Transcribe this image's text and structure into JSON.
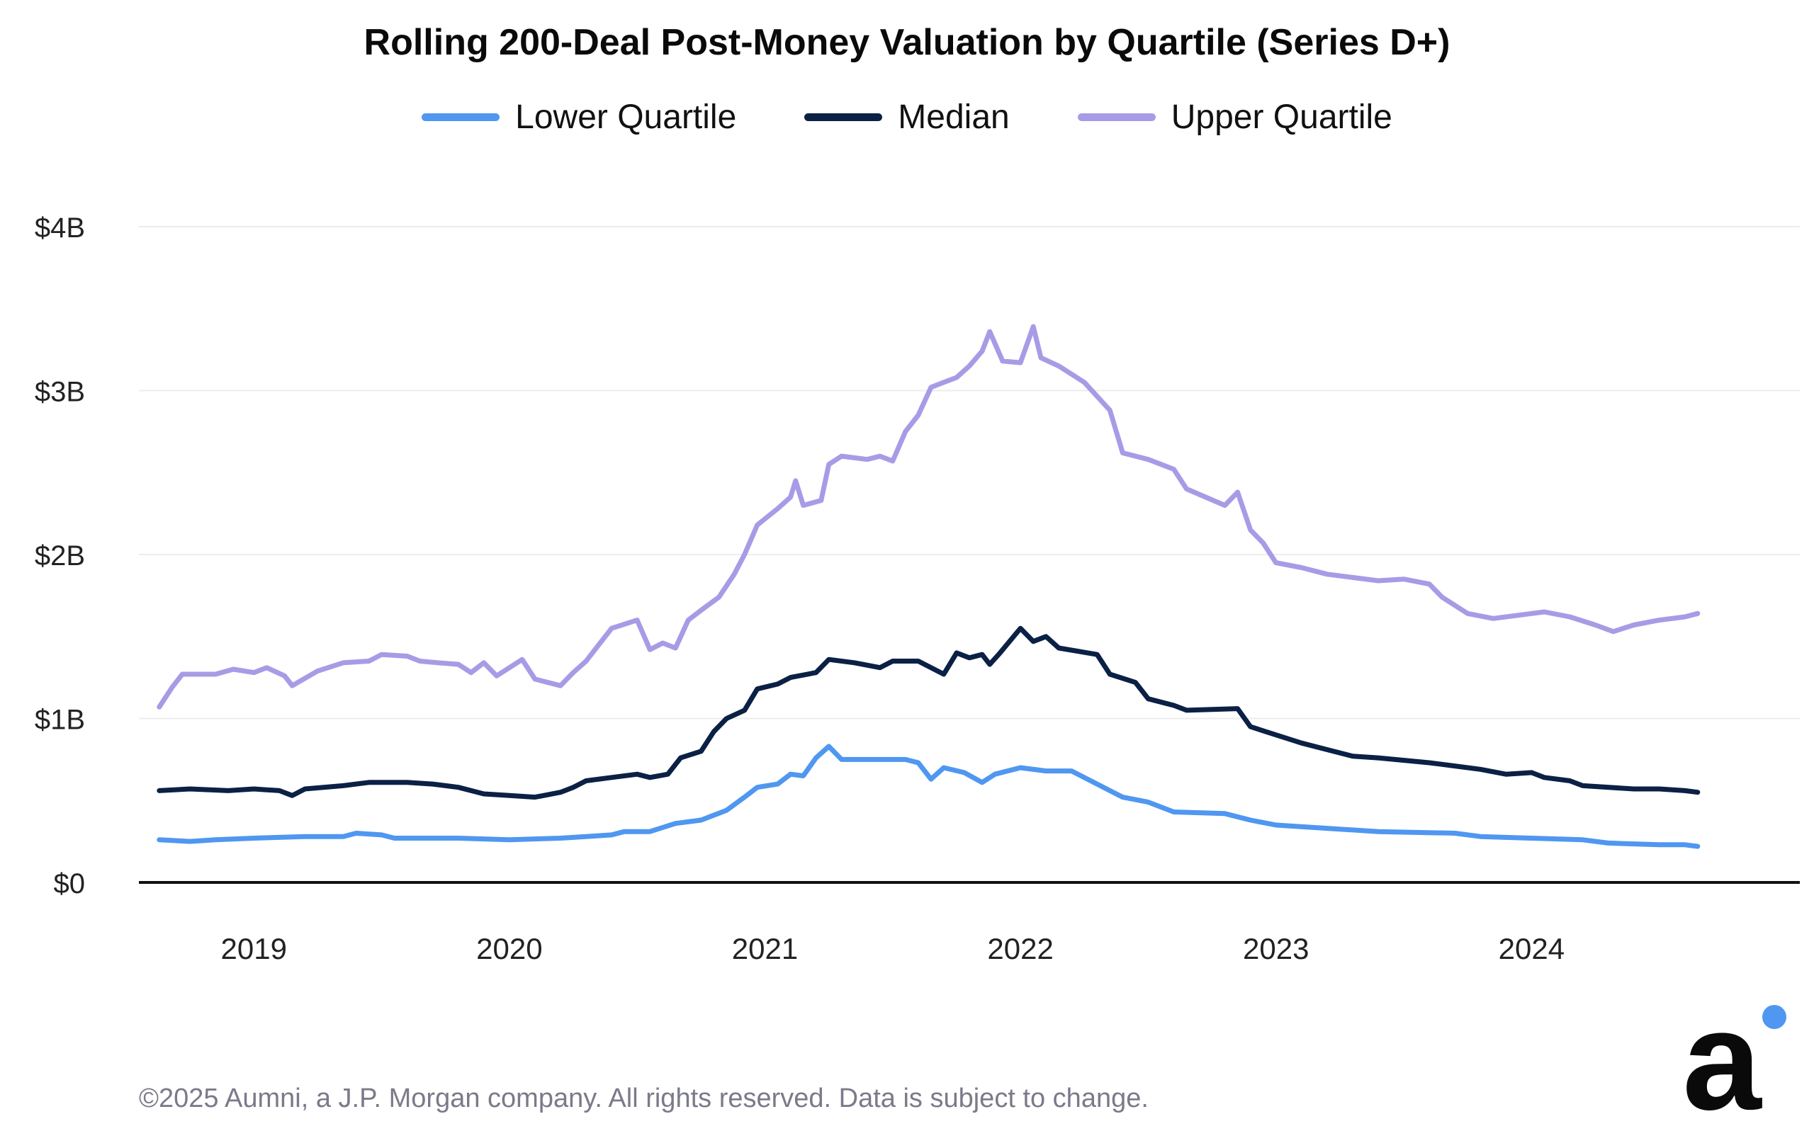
{
  "chart_data": {
    "type": "line",
    "title": "Rolling 200-Deal Post-Money Valuation by Quartile (Series D+)",
    "xlabel": "",
    "ylabel": "",
    "ylim": [
      0,
      4
    ],
    "y_unit": "$B",
    "yticks": [
      0,
      1,
      2,
      3,
      4
    ],
    "ytick_labels": [
      "$0",
      "$1B",
      "$2B",
      "$3B",
      "$4B"
    ],
    "xlim": [
      2018.55,
      2025.05
    ],
    "xticks": [
      2019,
      2020,
      2021,
      2022,
      2023,
      2024
    ],
    "xtick_labels": [
      "2019",
      "2020",
      "2021",
      "2022",
      "2023",
      "2024"
    ],
    "grid": true,
    "legend_position": "top-center",
    "series": [
      {
        "name": "Lower Quartile",
        "color": "#4F97F0",
        "points": [
          [
            2018.63,
            0.26
          ],
          [
            2018.75,
            0.25
          ],
          [
            2018.85,
            0.26
          ],
          [
            2019.0,
            0.27
          ],
          [
            2019.2,
            0.28
          ],
          [
            2019.35,
            0.28
          ],
          [
            2019.4,
            0.3
          ],
          [
            2019.5,
            0.29
          ],
          [
            2019.55,
            0.27
          ],
          [
            2019.8,
            0.27
          ],
          [
            2020.0,
            0.26
          ],
          [
            2020.2,
            0.27
          ],
          [
            2020.3,
            0.28
          ],
          [
            2020.4,
            0.29
          ],
          [
            2020.45,
            0.31
          ],
          [
            2020.55,
            0.31
          ],
          [
            2020.65,
            0.36
          ],
          [
            2020.75,
            0.38
          ],
          [
            2020.85,
            0.44
          ],
          [
            2020.92,
            0.52
          ],
          [
            2020.97,
            0.58
          ],
          [
            2021.05,
            0.6
          ],
          [
            2021.1,
            0.66
          ],
          [
            2021.15,
            0.65
          ],
          [
            2021.2,
            0.76
          ],
          [
            2021.25,
            0.83
          ],
          [
            2021.3,
            0.75
          ],
          [
            2021.4,
            0.75
          ],
          [
            2021.55,
            0.75
          ],
          [
            2021.6,
            0.73
          ],
          [
            2021.65,
            0.63
          ],
          [
            2021.7,
            0.7
          ],
          [
            2021.78,
            0.67
          ],
          [
            2021.85,
            0.61
          ],
          [
            2021.9,
            0.66
          ],
          [
            2022.0,
            0.7
          ],
          [
            2022.1,
            0.68
          ],
          [
            2022.2,
            0.68
          ],
          [
            2022.3,
            0.6
          ],
          [
            2022.4,
            0.52
          ],
          [
            2022.5,
            0.49
          ],
          [
            2022.6,
            0.43
          ],
          [
            2022.8,
            0.42
          ],
          [
            2022.9,
            0.38
          ],
          [
            2023.0,
            0.35
          ],
          [
            2023.2,
            0.33
          ],
          [
            2023.4,
            0.31
          ],
          [
            2023.7,
            0.3
          ],
          [
            2023.8,
            0.28
          ],
          [
            2024.0,
            0.27
          ],
          [
            2024.2,
            0.26
          ],
          [
            2024.3,
            0.24
          ],
          [
            2024.5,
            0.23
          ],
          [
            2024.6,
            0.23
          ],
          [
            2024.65,
            0.22
          ]
        ]
      },
      {
        "name": "Median",
        "color": "#0B2045",
        "points": [
          [
            2018.63,
            0.56
          ],
          [
            2018.75,
            0.57
          ],
          [
            2018.9,
            0.56
          ],
          [
            2019.0,
            0.57
          ],
          [
            2019.1,
            0.56
          ],
          [
            2019.15,
            0.53
          ],
          [
            2019.2,
            0.57
          ],
          [
            2019.35,
            0.59
          ],
          [
            2019.45,
            0.61
          ],
          [
            2019.6,
            0.61
          ],
          [
            2019.7,
            0.6
          ],
          [
            2019.8,
            0.58
          ],
          [
            2019.9,
            0.54
          ],
          [
            2020.0,
            0.53
          ],
          [
            2020.1,
            0.52
          ],
          [
            2020.2,
            0.55
          ],
          [
            2020.25,
            0.58
          ],
          [
            2020.3,
            0.62
          ],
          [
            2020.4,
            0.64
          ],
          [
            2020.5,
            0.66
          ],
          [
            2020.55,
            0.64
          ],
          [
            2020.62,
            0.66
          ],
          [
            2020.67,
            0.76
          ],
          [
            2020.75,
            0.8
          ],
          [
            2020.8,
            0.92
          ],
          [
            2020.85,
            1.0
          ],
          [
            2020.92,
            1.05
          ],
          [
            2020.97,
            1.18
          ],
          [
            2021.05,
            1.21
          ],
          [
            2021.1,
            1.25
          ],
          [
            2021.2,
            1.28
          ],
          [
            2021.25,
            1.36
          ],
          [
            2021.35,
            1.34
          ],
          [
            2021.45,
            1.31
          ],
          [
            2021.5,
            1.35
          ],
          [
            2021.6,
            1.35
          ],
          [
            2021.7,
            1.27
          ],
          [
            2021.75,
            1.4
          ],
          [
            2021.8,
            1.37
          ],
          [
            2021.85,
            1.39
          ],
          [
            2021.88,
            1.33
          ],
          [
            2021.92,
            1.4
          ],
          [
            2022.0,
            1.55
          ],
          [
            2022.05,
            1.47
          ],
          [
            2022.1,
            1.5
          ],
          [
            2022.15,
            1.43
          ],
          [
            2022.3,
            1.39
          ],
          [
            2022.35,
            1.27
          ],
          [
            2022.45,
            1.22
          ],
          [
            2022.5,
            1.12
          ],
          [
            2022.6,
            1.08
          ],
          [
            2022.65,
            1.05
          ],
          [
            2022.85,
            1.06
          ],
          [
            2022.9,
            0.95
          ],
          [
            2023.0,
            0.9
          ],
          [
            2023.1,
            0.85
          ],
          [
            2023.2,
            0.81
          ],
          [
            2023.3,
            0.77
          ],
          [
            2023.4,
            0.76
          ],
          [
            2023.6,
            0.73
          ],
          [
            2023.7,
            0.71
          ],
          [
            2023.8,
            0.69
          ],
          [
            2023.9,
            0.66
          ],
          [
            2024.0,
            0.67
          ],
          [
            2024.05,
            0.64
          ],
          [
            2024.15,
            0.62
          ],
          [
            2024.2,
            0.59
          ],
          [
            2024.4,
            0.57
          ],
          [
            2024.5,
            0.57
          ],
          [
            2024.6,
            0.56
          ],
          [
            2024.65,
            0.55
          ]
        ]
      },
      {
        "name": "Upper Quartile",
        "color": "#A89BE6",
        "points": [
          [
            2018.63,
            1.07
          ],
          [
            2018.68,
            1.19
          ],
          [
            2018.72,
            1.27
          ],
          [
            2018.85,
            1.27
          ],
          [
            2018.92,
            1.3
          ],
          [
            2019.0,
            1.28
          ],
          [
            2019.05,
            1.31
          ],
          [
            2019.12,
            1.26
          ],
          [
            2019.15,
            1.2
          ],
          [
            2019.25,
            1.29
          ],
          [
            2019.35,
            1.34
          ],
          [
            2019.45,
            1.35
          ],
          [
            2019.5,
            1.39
          ],
          [
            2019.6,
            1.38
          ],
          [
            2019.65,
            1.35
          ],
          [
            2019.72,
            1.34
          ],
          [
            2019.8,
            1.33
          ],
          [
            2019.85,
            1.28
          ],
          [
            2019.9,
            1.34
          ],
          [
            2019.95,
            1.26
          ],
          [
            2020.05,
            1.36
          ],
          [
            2020.1,
            1.24
          ],
          [
            2020.2,
            1.2
          ],
          [
            2020.25,
            1.28
          ],
          [
            2020.3,
            1.35
          ],
          [
            2020.35,
            1.45
          ],
          [
            2020.4,
            1.55
          ],
          [
            2020.5,
            1.6
          ],
          [
            2020.55,
            1.42
          ],
          [
            2020.6,
            1.46
          ],
          [
            2020.65,
            1.43
          ],
          [
            2020.7,
            1.6
          ],
          [
            2020.75,
            1.66
          ],
          [
            2020.82,
            1.74
          ],
          [
            2020.88,
            1.88
          ],
          [
            2020.92,
            2.0
          ],
          [
            2020.97,
            2.18
          ],
          [
            2021.05,
            2.28
          ],
          [
            2021.1,
            2.35
          ],
          [
            2021.12,
            2.45
          ],
          [
            2021.15,
            2.3
          ],
          [
            2021.22,
            2.33
          ],
          [
            2021.25,
            2.55
          ],
          [
            2021.3,
            2.6
          ],
          [
            2021.4,
            2.58
          ],
          [
            2021.45,
            2.6
          ],
          [
            2021.5,
            2.57
          ],
          [
            2021.55,
            2.75
          ],
          [
            2021.6,
            2.85
          ],
          [
            2021.65,
            3.02
          ],
          [
            2021.7,
            3.05
          ],
          [
            2021.75,
            3.08
          ],
          [
            2021.8,
            3.15
          ],
          [
            2021.85,
            3.24
          ],
          [
            2021.88,
            3.36
          ],
          [
            2021.93,
            3.18
          ],
          [
            2022.0,
            3.17
          ],
          [
            2022.05,
            3.39
          ],
          [
            2022.08,
            3.2
          ],
          [
            2022.15,
            3.15
          ],
          [
            2022.25,
            3.05
          ],
          [
            2022.35,
            2.88
          ],
          [
            2022.4,
            2.62
          ],
          [
            2022.5,
            2.58
          ],
          [
            2022.6,
            2.52
          ],
          [
            2022.65,
            2.4
          ],
          [
            2022.8,
            2.3
          ],
          [
            2022.85,
            2.38
          ],
          [
            2022.9,
            2.15
          ],
          [
            2022.95,
            2.07
          ],
          [
            2023.0,
            1.95
          ],
          [
            2023.1,
            1.92
          ],
          [
            2023.2,
            1.88
          ],
          [
            2023.3,
            1.86
          ],
          [
            2023.4,
            1.84
          ],
          [
            2023.5,
            1.85
          ],
          [
            2023.6,
            1.82
          ],
          [
            2023.65,
            1.74
          ],
          [
            2023.75,
            1.64
          ],
          [
            2023.85,
            1.61
          ],
          [
            2023.95,
            1.63
          ],
          [
            2024.05,
            1.65
          ],
          [
            2024.15,
            1.62
          ],
          [
            2024.25,
            1.57
          ],
          [
            2024.32,
            1.53
          ],
          [
            2024.4,
            1.57
          ],
          [
            2024.5,
            1.6
          ],
          [
            2024.6,
            1.62
          ],
          [
            2024.65,
            1.64
          ]
        ]
      }
    ]
  },
  "footer": {
    "copyright": "©2025 Aumni, a J.P. Morgan company. All rights reserved. Data is subject to change."
  },
  "brand": {
    "logo_text": "a",
    "dot_color": "#4F97F0",
    "logo_color": "#0a0a0a"
  }
}
